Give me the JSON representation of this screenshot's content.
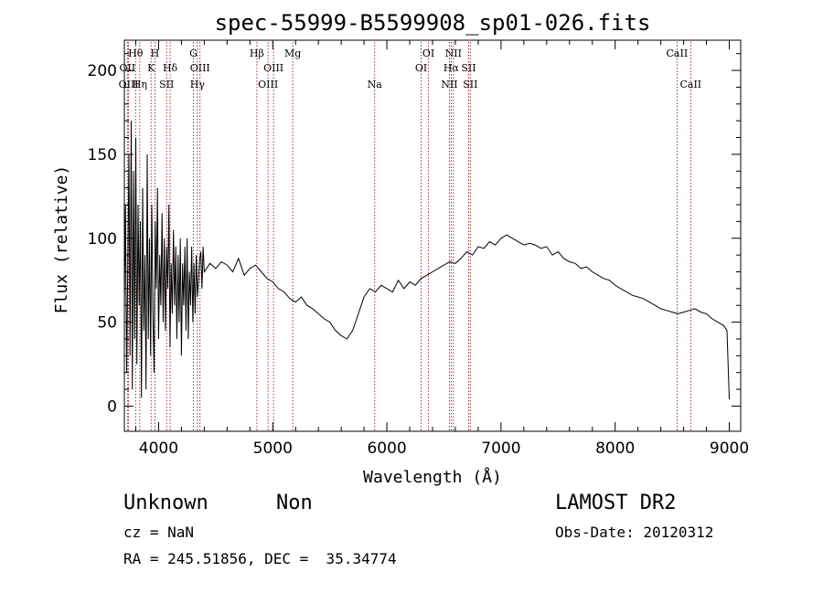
{
  "chart_data": {
    "type": "line",
    "title": "spec-55999-B5599908_sp01-026.fits",
    "xlabel": "Wavelength (Å)",
    "ylabel": "Flux (relative)",
    "xlim": [
      3700,
      9100
    ],
    "ylim": [
      -15,
      218
    ],
    "xticks": [
      4000,
      5000,
      6000,
      7000,
      8000,
      9000
    ],
    "yticks": [
      0,
      50,
      100,
      150,
      200
    ],
    "grid": false,
    "line_color": "#000000",
    "marker_color": "#8b0000",
    "series": [
      {
        "values_sampled": true,
        "x": [
          3700,
          3710,
          3720,
          3730,
          3740,
          3750,
          3760,
          3770,
          3780,
          3790,
          3800,
          3810,
          3820,
          3830,
          3840,
          3850,
          3860,
          3870,
          3880,
          3890,
          3900,
          3910,
          3920,
          3930,
          3940,
          3950,
          3960,
          3970,
          3980,
          3990,
          4000,
          4010,
          4020,
          4030,
          4040,
          4050,
          4060,
          4070,
          4080,
          4090,
          4100,
          4110,
          4120,
          4130,
          4140,
          4150,
          4160,
          4170,
          4180,
          4190,
          4200,
          4210,
          4220,
          4230,
          4240,
          4250,
          4260,
          4270,
          4280,
          4290,
          4300,
          4310,
          4320,
          4330,
          4340,
          4350,
          4360,
          4370,
          4380,
          4390,
          4400,
          4450,
          4500,
          4550,
          4600,
          4650,
          4700,
          4750,
          4800,
          4850,
          4900,
          4950,
          5000,
          5050,
          5100,
          5150,
          5200,
          5250,
          5300,
          5350,
          5400,
          5450,
          5500,
          5550,
          5600,
          5650,
          5700,
          5750,
          5800,
          5850,
          5900,
          5950,
          6000,
          6050,
          6100,
          6150,
          6200,
          6250,
          6300,
          6350,
          6400,
          6450,
          6500,
          6550,
          6600,
          6650,
          6700,
          6750,
          6800,
          6850,
          6900,
          6950,
          7000,
          7050,
          7100,
          7150,
          7200,
          7250,
          7300,
          7350,
          7400,
          7450,
          7500,
          7550,
          7600,
          7650,
          7700,
          7750,
          7800,
          7850,
          7900,
          7950,
          8000,
          8050,
          8100,
          8150,
          8200,
          8250,
          8300,
          8350,
          8400,
          8450,
          8500,
          8550,
          8600,
          8650,
          8700,
          8750,
          8800,
          8850,
          8900,
          8950,
          8980,
          9000
        ],
        "y": [
          60,
          120,
          20,
          80,
          150,
          30,
          170,
          10,
          140,
          40,
          160,
          25,
          120,
          60,
          110,
          5,
          130,
          45,
          90,
          10,
          150,
          40,
          100,
          30,
          120,
          55,
          20,
          110,
          70,
          130,
          40,
          90,
          60,
          115,
          50,
          100,
          45,
          95,
          70,
          120,
          35,
          85,
          55,
          105,
          60,
          95,
          40,
          90,
          50,
          100,
          30,
          85,
          60,
          95,
          45,
          100,
          40,
          80,
          60,
          95,
          50,
          85,
          55,
          90,
          65,
          75,
          88,
          92,
          70,
          95,
          80,
          85,
          82,
          86,
          84,
          80,
          88,
          78,
          82,
          84,
          80,
          76,
          74,
          70,
          68,
          64,
          62,
          65,
          60,
          58,
          55,
          52,
          50,
          45,
          42,
          40,
          45,
          55,
          65,
          70,
          68,
          72,
          70,
          68,
          75,
          70,
          74,
          72,
          76,
          78,
          80,
          82,
          84,
          86,
          85,
          88,
          92,
          90,
          95,
          94,
          98,
          96,
          100,
          102,
          100,
          98,
          96,
          97,
          96,
          94,
          95,
          90,
          92,
          88,
          86,
          85,
          82,
          83,
          80,
          78,
          76,
          75,
          72,
          70,
          68,
          66,
          65,
          64,
          62,
          60,
          58,
          57,
          56,
          55,
          56,
          57,
          58,
          56,
          55,
          52,
          50,
          48,
          45,
          4
        ]
      }
    ],
    "lines": [
      {
        "name": "Hθ",
        "x": 3798,
        "row": 0
      },
      {
        "name": "OII",
        "x": 3727,
        "row": 1
      },
      {
        "name": "OIII",
        "x": 3737,
        "row": 2
      },
      {
        "name": "Hη",
        "x": 3835,
        "row": 2
      },
      {
        "name": "H",
        "x": 3968,
        "row": 0
      },
      {
        "name": "K",
        "x": 3934,
        "row": 1
      },
      {
        "name": "Hδ",
        "x": 4101,
        "row": 1
      },
      {
        "name": "SII",
        "x": 4070,
        "row": 2
      },
      {
        "name": "G",
        "x": 4305,
        "row": 0
      },
      {
        "name": "OIII",
        "x": 4363,
        "row": 1
      },
      {
        "name": "Hγ",
        "x": 4340,
        "row": 2
      },
      {
        "name": "Hβ",
        "x": 4861,
        "row": 0
      },
      {
        "name": "OIII",
        "x": 5007,
        "row": 1
      },
      {
        "name": "OIII",
        "x": 4959,
        "row": 2
      },
      {
        "name": "Mg",
        "x": 5175,
        "row": 0
      },
      {
        "name": "Na",
        "x": 5893,
        "row": 2
      },
      {
        "name": "OI",
        "x": 6364,
        "row": 0
      },
      {
        "name": "OI",
        "x": 6300,
        "row": 1
      },
      {
        "name": "NII",
        "x": 6583,
        "row": 0
      },
      {
        "name": "Hα",
        "x": 6563,
        "row": 1
      },
      {
        "name": "SII",
        "x": 6716,
        "row": 1
      },
      {
        "name": "NII",
        "x": 6548,
        "row": 2
      },
      {
        "name": "SII",
        "x": 6731,
        "row": 2
      },
      {
        "name": "CaII",
        "x": 8542,
        "row": 0
      },
      {
        "name": "CaII",
        "x": 8662,
        "row": 2
      }
    ]
  },
  "info": {
    "class": "Unknown",
    "subclass": "Non",
    "cz": "cz = NaN",
    "radec": "RA = 245.51856, DEC =  35.34774",
    "survey": "LAMOST DR2",
    "obsdate": "Obs-Date: 20120312"
  }
}
